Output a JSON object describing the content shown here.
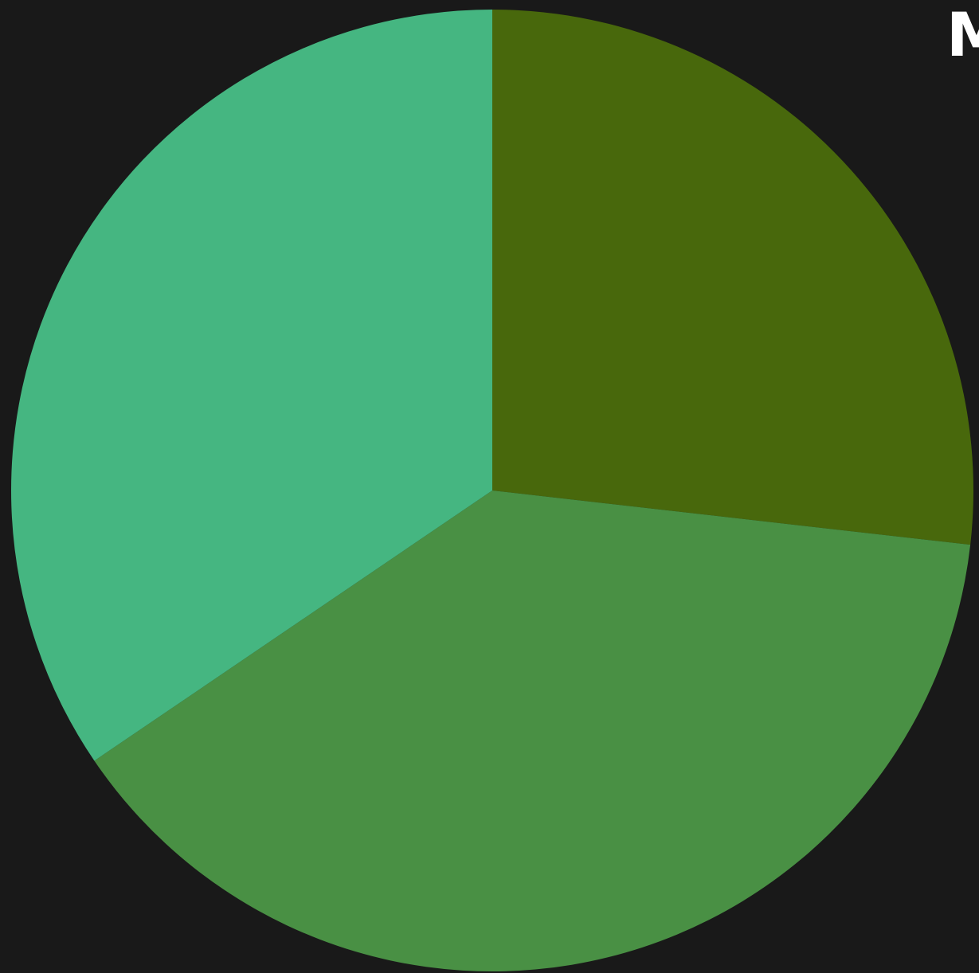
{
  "chart_data": {
    "type": "pie",
    "title": "M",
    "slices": [
      {
        "value": 26.8,
        "color": "#48680c"
      },
      {
        "value": 38.7,
        "color": "#499044"
      },
      {
        "value": 34.5,
        "color": "#45b681"
      }
    ],
    "start_angle_deg": 0,
    "direction": "clockwise",
    "background": "#191919"
  }
}
